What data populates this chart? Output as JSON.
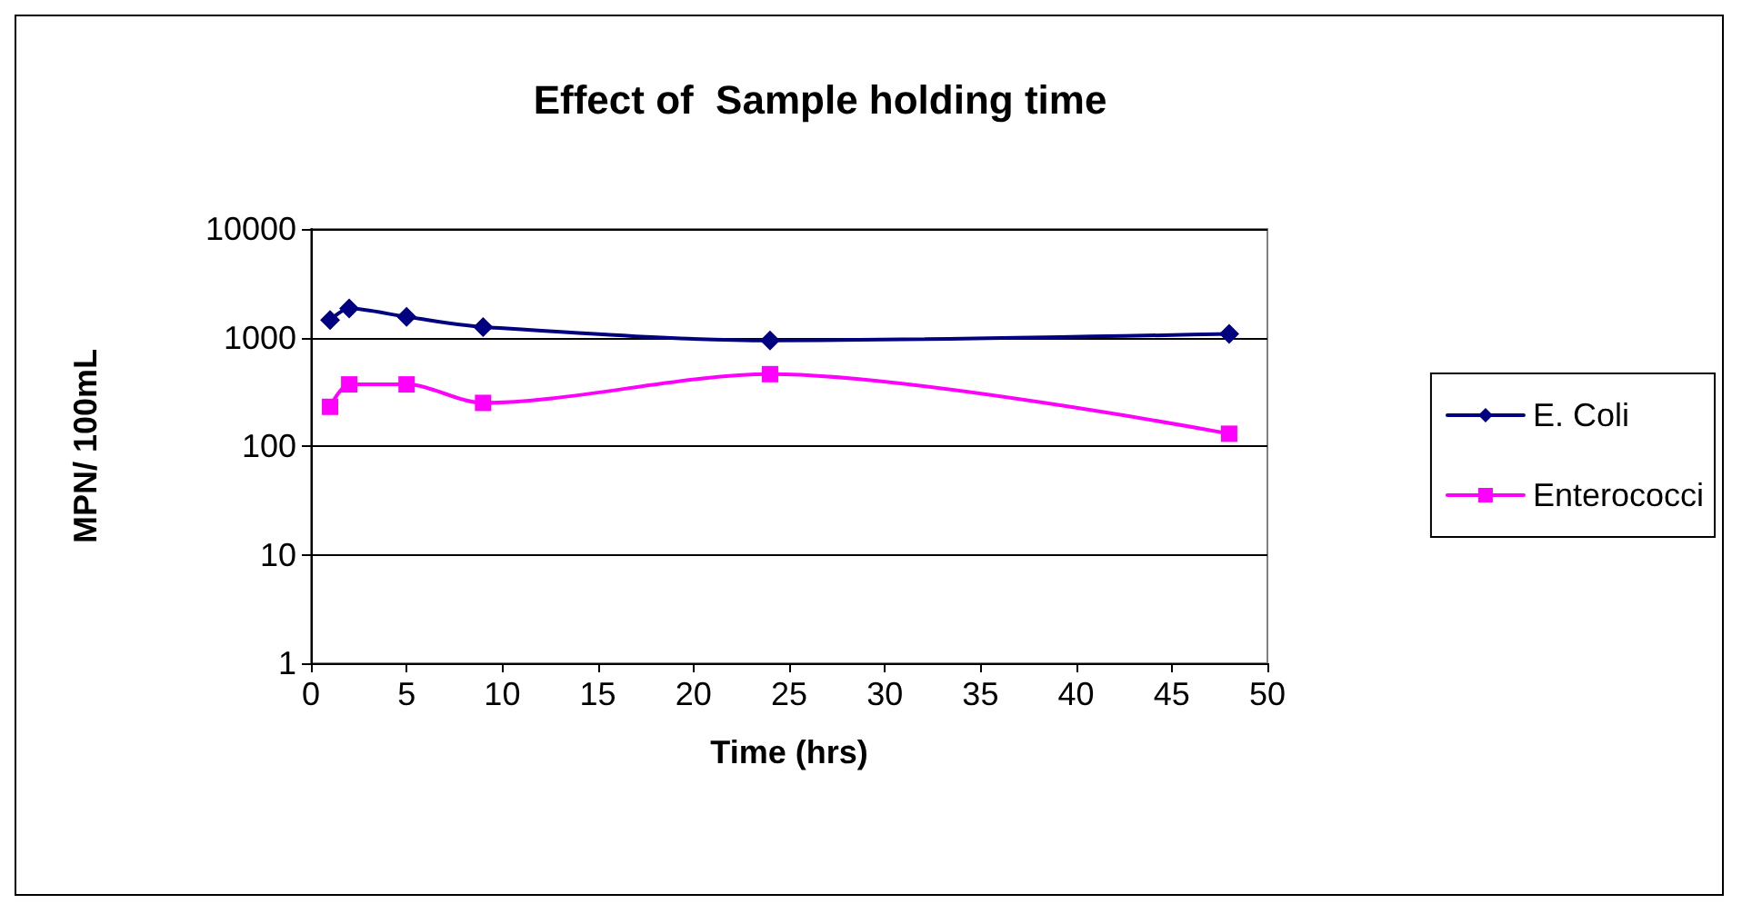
{
  "chart_data": {
    "type": "line",
    "title": "Effect of  Sample holding time",
    "xlabel": "Time (hrs)",
    "ylabel": "MPN/ 100mL",
    "x": [
      1,
      2,
      5,
      9,
      24,
      48
    ],
    "series": [
      {
        "name": "E. Coli",
        "color": "#000080",
        "marker": "diamond",
        "values": [
          1450,
          1850,
          1550,
          1250,
          940,
          1080
        ]
      },
      {
        "name": "Enterococci",
        "color": "#ff00ff",
        "marker": "square",
        "values": [
          230,
          370,
          370,
          250,
          460,
          130
        ]
      }
    ],
    "xlim": [
      0,
      50
    ],
    "xticks": [
      0,
      5,
      10,
      15,
      20,
      25,
      30,
      35,
      40,
      45,
      50
    ],
    "ylim": [
      1,
      10000
    ],
    "yticks": [
      1,
      10,
      100,
      1000,
      10000
    ],
    "log": "y",
    "grid": "y",
    "legend": "right",
    "line_style": "solid"
  }
}
